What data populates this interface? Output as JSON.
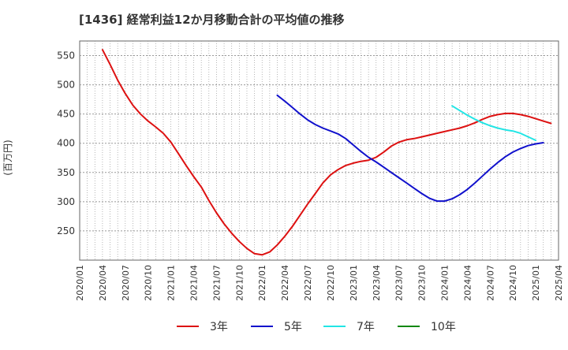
{
  "chart_data": {
    "type": "line",
    "title": "[1436]  経常利益12か月移動合計の平均値の推移",
    "ylabel": "(百万円)",
    "xlabel": "",
    "ylim": [
      200,
      575
    ],
    "yticks": [
      250,
      300,
      350,
      400,
      450,
      500,
      550
    ],
    "xticks": [
      "2020/01",
      "2020/04",
      "2020/07",
      "2020/10",
      "2021/01",
      "2021/04",
      "2021/07",
      "2021/10",
      "2022/01",
      "2022/04",
      "2022/07",
      "2022/10",
      "2023/01",
      "2023/04",
      "2023/07",
      "2023/10",
      "2024/01",
      "2024/04",
      "2024/07",
      "2024/10",
      "2025/01",
      "2025/04"
    ],
    "x_start": "2020/01",
    "x_end": "2025/04",
    "grid": true,
    "legend": "bottom",
    "series": [
      {
        "name": "3年",
        "color": "#dd1111",
        "start": "2020/04",
        "values": [
          560,
          535,
          508,
          485,
          465,
          450,
          438,
          428,
          417,
          402,
          382,
          362,
          343,
          325,
          302,
          281,
          262,
          246,
          232,
          220,
          211,
          209,
          214,
          226,
          241,
          258,
          277,
          296,
          314,
          332,
          346,
          355,
          362,
          366,
          369,
          371,
          376,
          385,
          395,
          402,
          406,
          408,
          411,
          414,
          417,
          420,
          423,
          426,
          430,
          435,
          441,
          446,
          449,
          451,
          451,
          449,
          446,
          442,
          438,
          434
        ]
      },
      {
        "name": "5年",
        "color": "#1111cc",
        "start": "2022/03",
        "values": [
          482,
          472,
          461,
          450,
          440,
          432,
          426,
          421,
          416,
          408,
          397,
          386,
          376,
          368,
          359,
          350,
          341,
          332,
          323,
          314,
          306,
          301,
          301,
          305,
          312,
          321,
          332,
          344,
          356,
          367,
          377,
          385,
          391,
          396,
          399,
          401
        ]
      },
      {
        "name": "7年",
        "color": "#22e5e5",
        "start": "2024/02",
        "values": [
          464,
          456,
          448,
          441,
          435,
          430,
          426,
          423,
          421,
          417,
          411,
          405
        ]
      },
      {
        "name": "10年",
        "color": "#118811",
        "start": "2025/01",
        "values": []
      }
    ]
  }
}
